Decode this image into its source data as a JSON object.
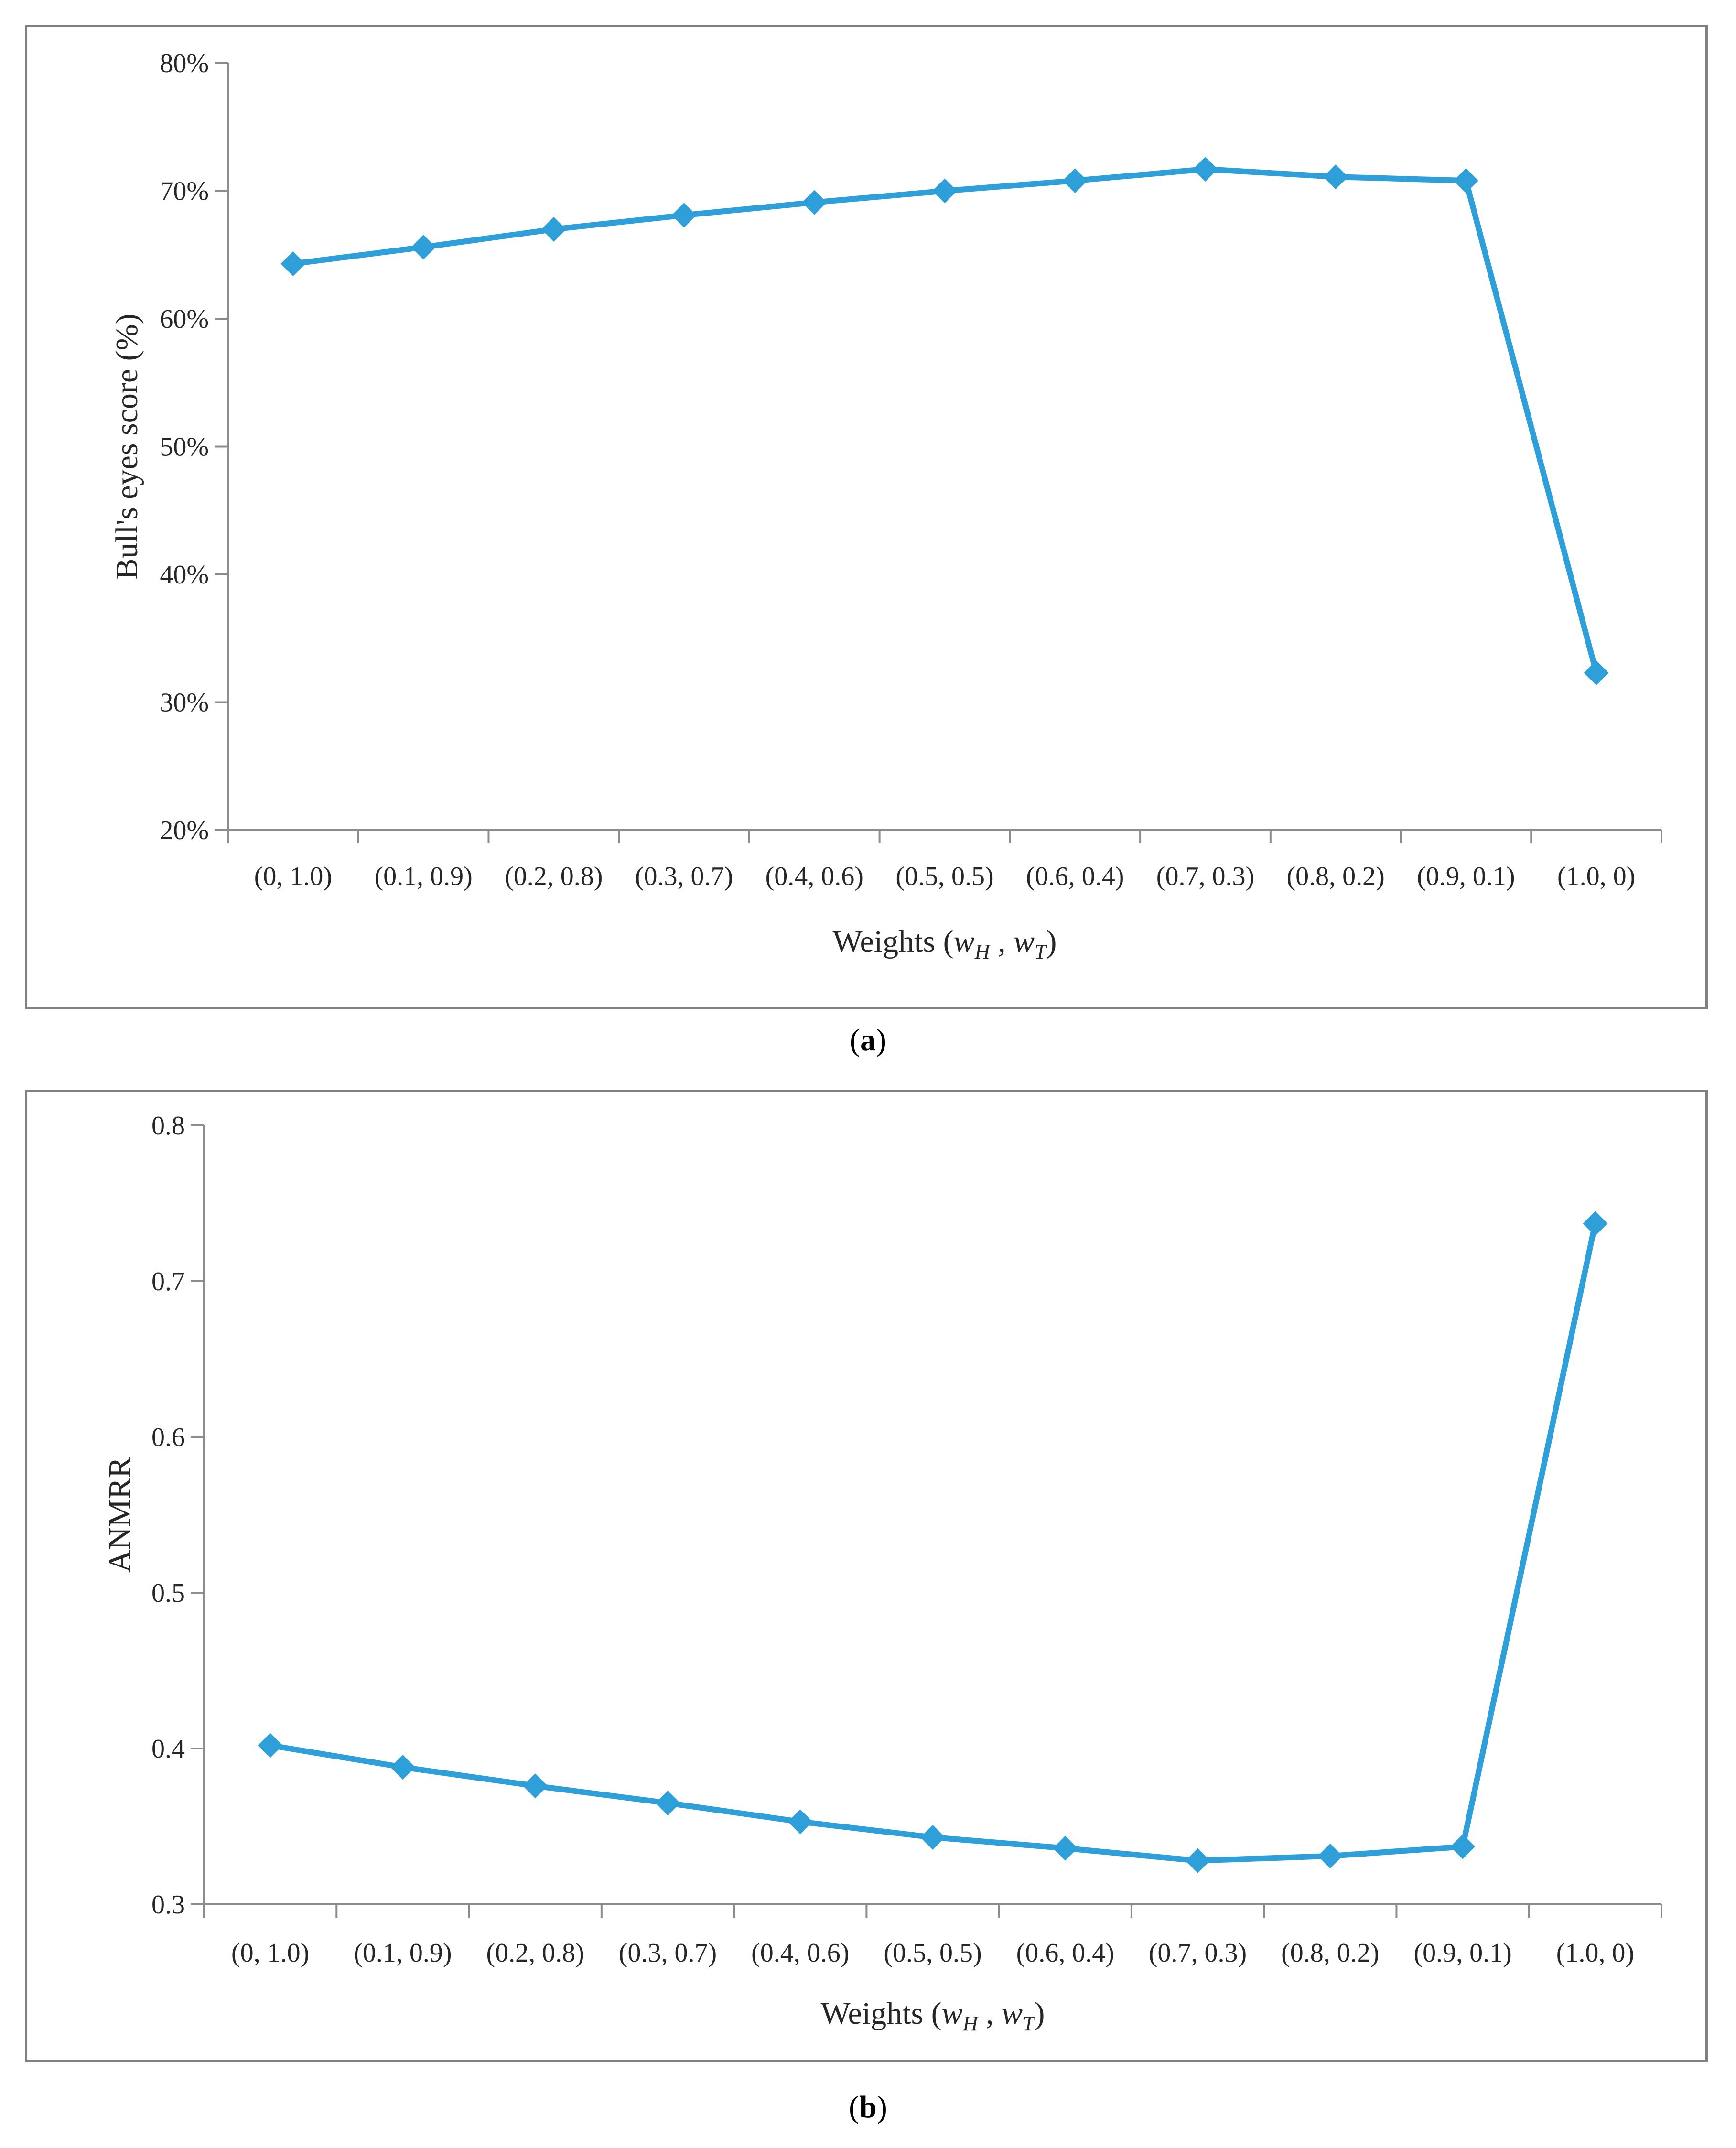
{
  "chart_data": [
    {
      "type": "line",
      "panel_label": "a",
      "categories": [
        "(0, 1.0)",
        "(0.1, 0.9)",
        "(0.2, 0.8)",
        "(0.3, 0.7)",
        "(0.4, 0.6)",
        "(0.5, 0.5)",
        "(0.6, 0.4)",
        "(0.7, 0.3)",
        "(0.8, 0.2)",
        "(0.9, 0.1)",
        "(1.0, 0)"
      ],
      "series": [
        {
          "name": "Bull's eyes score",
          "values": [
            64.3,
            65.6,
            67.0,
            68.1,
            69.1,
            70.0,
            70.8,
            71.7,
            71.1,
            70.8,
            32.3
          ]
        }
      ],
      "ylabel": "Bull's eyes score (%)",
      "xlabel_prefix": "Weights (",
      "xlabel_w1": "w",
      "xlabel_sub1": "H",
      "xlabel_sep": " , ",
      "xlabel_w2": "w",
      "xlabel_sub2": "T",
      "xlabel_suffix": ")",
      "ylim": [
        20,
        80
      ],
      "yticks": [
        20,
        30,
        40,
        50,
        60,
        70,
        80
      ],
      "ytick_labels": [
        "20%",
        "30%",
        "40%",
        "50%",
        "60%",
        "70%",
        "80%"
      ],
      "grid": false,
      "line_color": "#2e9fd8"
    },
    {
      "type": "line",
      "panel_label": "b",
      "categories": [
        "(0, 1.0)",
        "(0.1, 0.9)",
        "(0.2, 0.8)",
        "(0.3, 0.7)",
        "(0.4, 0.6)",
        "(0.5, 0.5)",
        "(0.6, 0.4)",
        "(0.7, 0.3)",
        "(0.8, 0.2)",
        "(0.9, 0.1)",
        "(1.0, 0)"
      ],
      "series": [
        {
          "name": "ANMRR",
          "values": [
            0.402,
            0.388,
            0.376,
            0.365,
            0.353,
            0.343,
            0.336,
            0.328,
            0.331,
            0.337,
            0.737
          ]
        }
      ],
      "ylabel": "ANMRR",
      "xlabel_prefix": "Weights (",
      "xlabel_w1": "w",
      "xlabel_sub1": "H",
      "xlabel_sep": " , ",
      "xlabel_w2": "w",
      "xlabel_sub2": "T",
      "xlabel_suffix": ")",
      "ylim": [
        0.3,
        0.8
      ],
      "yticks": [
        0.3,
        0.4,
        0.5,
        0.6,
        0.7,
        0.8
      ],
      "ytick_labels": [
        "0.3",
        "0.4",
        "0.5",
        "0.6",
        "0.7",
        "0.8"
      ],
      "grid": false,
      "line_color": "#2e9fd8"
    }
  ],
  "captions": {
    "a": {
      "open": "(",
      "label": "a",
      "close": ")"
    },
    "b": {
      "open": "(",
      "label": "b",
      "close": ")"
    }
  }
}
